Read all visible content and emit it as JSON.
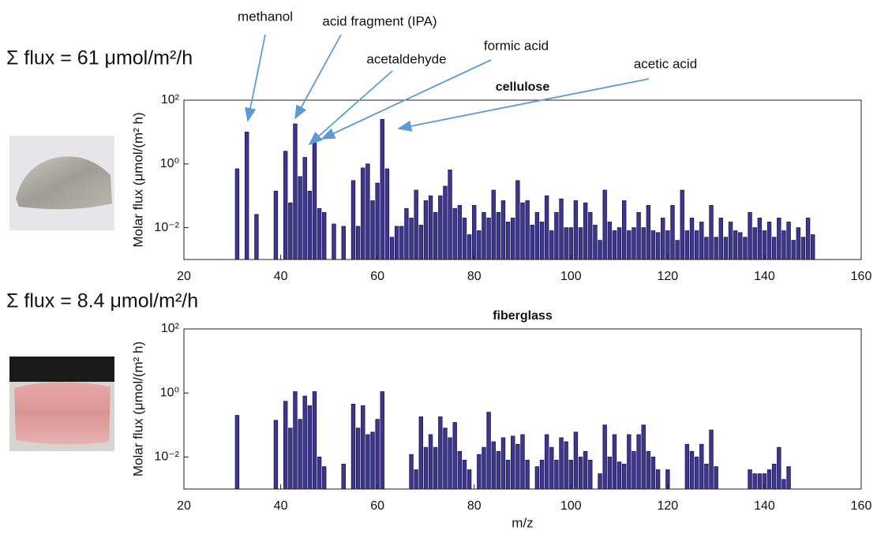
{
  "chart_data": [
    {
      "type": "bar",
      "title": "cellulose",
      "flux_label": "Σ flux = 61 μmol/m²/h",
      "ylabel": "Molar flux (μmol/(m² h)",
      "yscale": "log",
      "color": "#3f3690",
      "annotations": [
        "methanol",
        "acid fragment (IPA)",
        "acetaldehyde",
        "formic acid",
        "acetic acid"
      ],
      "xlim": [
        20,
        160
      ],
      "xticks": [
        20,
        40,
        60,
        80,
        100,
        120,
        140,
        160
      ],
      "ylim": [
        0.001,
        100
      ],
      "yticks": [
        {
          "value": 0.01,
          "label": "10⁻²"
        },
        {
          "value": 1,
          "label": "10⁰"
        },
        {
          "value": 100,
          "label": "10²"
        }
      ],
      "x": [
        31,
        33,
        35,
        39,
        41,
        42,
        43,
        44,
        45,
        46,
        47,
        48,
        49,
        51,
        53,
        55,
        56,
        57,
        58,
        59,
        60,
        61,
        62,
        63,
        64,
        65,
        66,
        67,
        68,
        69,
        70,
        71,
        72,
        73,
        74,
        75,
        76,
        77,
        78,
        79,
        80,
        81,
        82,
        83,
        84,
        85,
        86,
        87,
        88,
        89,
        90,
        91,
        92,
        93,
        94,
        95,
        96,
        97,
        98,
        99,
        100,
        101,
        102,
        103,
        104,
        105,
        106,
        107,
        108,
        109,
        110,
        111,
        112,
        113,
        114,
        115,
        116,
        117,
        118,
        119,
        120,
        121,
        122,
        123,
        124,
        125,
        126,
        127,
        128,
        129,
        130,
        131,
        132,
        133,
        134,
        135,
        136,
        137,
        138,
        139,
        140,
        141,
        142,
        143,
        144,
        145,
        146,
        147,
        148,
        149,
        150
      ],
      "values": [
        0.7,
        10,
        0.026,
        0.14,
        2.5,
        0.06,
        18,
        0.4,
        1.6,
        0.14,
        4.5,
        0.04,
        0.03,
        0.013,
        0.011,
        0.3,
        0.011,
        0.75,
        1,
        0.07,
        0.25,
        25,
        0.7,
        0.005,
        0.011,
        0.011,
        0.04,
        0.02,
        0.15,
        0.012,
        0.07,
        0.1,
        0.03,
        0.1,
        0.2,
        0.65,
        0.04,
        0.05,
        0.02,
        0.006,
        0.05,
        0.008,
        0.03,
        0.02,
        0.15,
        0.03,
        0.07,
        0.015,
        0.02,
        0.3,
        0.06,
        0.07,
        0.012,
        0.03,
        0.015,
        0.1,
        0.008,
        0.03,
        0.08,
        0.01,
        0.01,
        0.07,
        0.01,
        0.06,
        0.03,
        0.012,
        0.004,
        0.15,
        0.015,
        0.008,
        0.01,
        0.07,
        0.008,
        0.01,
        0.03,
        0.01,
        0.05,
        0.008,
        0.007,
        0.02,
        0.008,
        0.05,
        0.004,
        0.15,
        0.008,
        0.02,
        0.008,
        0.015,
        0.005,
        0.05,
        0.005,
        0.02,
        0.005,
        0.015,
        0.008,
        0.007,
        0.005,
        0.03,
        0.01,
        0.02,
        0.008,
        0.015,
        0.005,
        0.02,
        0.008,
        0.015,
        0.004,
        0.01,
        0.005,
        0.02,
        0.006
      ]
    },
    {
      "type": "bar",
      "title": "fiberglass",
      "flux_label": "Σ flux = 8.4 μmol/m²/h",
      "ylabel": "Molar flux (μmol/(m² h)",
      "xlabel": "m/z",
      "yscale": "log",
      "color": "#3f3690",
      "xlim": [
        20,
        160
      ],
      "xticks": [
        20,
        40,
        60,
        80,
        100,
        120,
        140,
        160
      ],
      "ylim": [
        0.001,
        100
      ],
      "yticks": [
        {
          "value": 0.01,
          "label": "10⁻²"
        },
        {
          "value": 1,
          "label": "10⁰"
        },
        {
          "value": 100,
          "label": "10²"
        }
      ],
      "x": [
        31,
        39,
        41,
        42,
        43,
        44,
        45,
        46,
        47,
        48,
        49,
        53,
        55,
        56,
        57,
        58,
        59,
        60,
        61,
        67,
        68,
        69,
        70,
        71,
        72,
        73,
        74,
        75,
        76,
        77,
        78,
        79,
        81,
        82,
        83,
        84,
        85,
        86,
        87,
        88,
        89,
        90,
        91,
        93,
        94,
        95,
        96,
        97,
        98,
        99,
        100,
        101,
        102,
        103,
        104,
        106,
        107,
        108,
        109,
        110,
        111,
        112,
        113,
        114,
        115,
        116,
        117,
        118,
        120,
        124,
        125,
        126,
        127,
        128,
        129,
        130,
        137,
        138,
        139,
        140,
        141,
        142,
        143,
        144,
        145
      ],
      "values": [
        0.2,
        0.14,
        0.55,
        0.08,
        1.1,
        0.15,
        0.8,
        0.4,
        1.1,
        0.01,
        0.005,
        0.006,
        0.45,
        0.08,
        0.4,
        0.05,
        0.06,
        0.15,
        1.1,
        0.012,
        0.004,
        0.18,
        0.02,
        0.05,
        0.02,
        0.18,
        0.08,
        0.04,
        0.12,
        0.015,
        0.008,
        0.004,
        0.012,
        0.02,
        0.25,
        0.03,
        0.015,
        0.04,
        0.008,
        0.045,
        0.025,
        0.05,
        0.008,
        0.005,
        0.008,
        0.05,
        0.02,
        0.008,
        0.04,
        0.03,
        0.008,
        0.06,
        0.01,
        0.015,
        0.008,
        0.003,
        0.1,
        0.01,
        0.05,
        0.007,
        0.006,
        0.05,
        0.015,
        0.05,
        0.1,
        0.015,
        0.01,
        0.004,
        0.004,
        0.025,
        0.015,
        0.01,
        0.025,
        0.006,
        0.07,
        0.005,
        0.004,
        0.003,
        0.003,
        0.003,
        0.004,
        0.006,
        0.02,
        0.002,
        0.005
      ]
    }
  ]
}
